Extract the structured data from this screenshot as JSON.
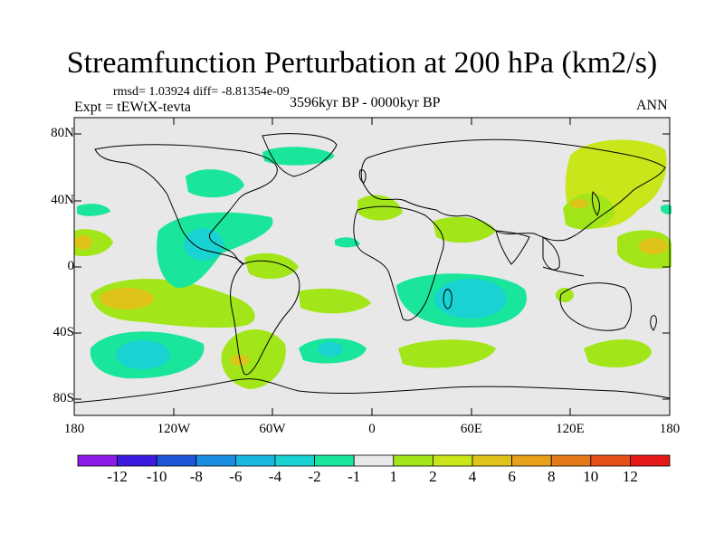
{
  "title": "Streamfunction Perturbation at 200 hPa (km2/s)",
  "stats": "rmsd= 1.03924 diff= -8.81354e-09",
  "experiment": "Expt = tEWtX-tevta",
  "period": "3596kyr BP - 0000kyr BP",
  "season": "ANN",
  "axes": {
    "y_labels": [
      "80N",
      "40N",
      "0",
      "40S",
      "80S"
    ],
    "x_labels": [
      "180",
      "120W",
      "60W",
      "0",
      "60E",
      "120E",
      "180"
    ]
  },
  "colorbar": {
    "labels": [
      "-12",
      "-10",
      "-8",
      "-6",
      "-4",
      "-2",
      "-1",
      "1",
      "2",
      "4",
      "6",
      "8",
      "10",
      "12"
    ],
    "colors": [
      "#8c1ae8",
      "#3c1ae0",
      "#1f55d8",
      "#1a8ee0",
      "#19b8e0",
      "#19d2d2",
      "#19e69a",
      "#e8e8e8",
      "#a2e619",
      "#c8e619",
      "#e0c319",
      "#e6a019",
      "#e67a19",
      "#e65019",
      "#e61919"
    ]
  }
}
